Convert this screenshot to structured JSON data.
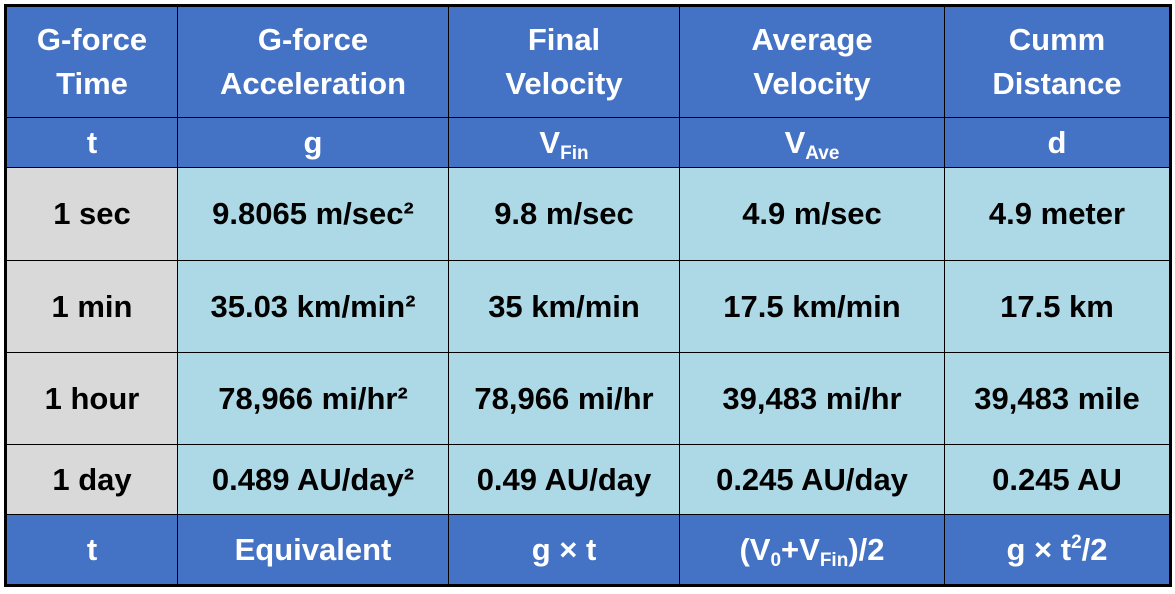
{
  "table": {
    "header": [
      {
        "line1": "G-force",
        "line2": "Time"
      },
      {
        "line1": "G-force",
        "line2": "Acceleration"
      },
      {
        "line1": "Final",
        "line2": "Velocity"
      },
      {
        "line1": "Average",
        "line2": "Velocity"
      },
      {
        "line1": "Cumm",
        "line2": "Distance"
      }
    ],
    "symbols": [
      {
        "base": "t",
        "sub": ""
      },
      {
        "base": "g",
        "sub": ""
      },
      {
        "base": "V",
        "sub": "Fin"
      },
      {
        "base": "V",
        "sub": "Ave"
      },
      {
        "base": "d",
        "sub": ""
      }
    ],
    "rows": [
      {
        "time": "1 sec",
        "accel": "9.8065 m/sec²",
        "final": "9.8 m/sec",
        "avg": "4.9 m/sec",
        "dist": "4.9 meter"
      },
      {
        "time": "1 min",
        "accel": "35.03 km/min²",
        "final": "35 km/min",
        "avg": "17.5 km/min",
        "dist": "17.5 km"
      },
      {
        "time": "1 hour",
        "accel": "78,966 mi/hr²",
        "final": "78,966 mi/hr",
        "avg": "39,483 mi/hr",
        "dist": "39,483 mile"
      },
      {
        "time": "1 day",
        "accel": "0.489 AU/day²",
        "final": "0.49 AU/day",
        "avg": "0.245 AU/day",
        "dist": "0.245 AU"
      }
    ],
    "footer": {
      "time": "t",
      "accel": "Equivalent",
      "final": "g × t",
      "avg": {
        "open": "(V",
        "sub0": "0",
        "plus": "+V",
        "subFin": "Fin",
        "close": ")/2"
      },
      "dist": {
        "base": "g × t",
        "sup": "2",
        "tail": "/2"
      }
    }
  }
}
